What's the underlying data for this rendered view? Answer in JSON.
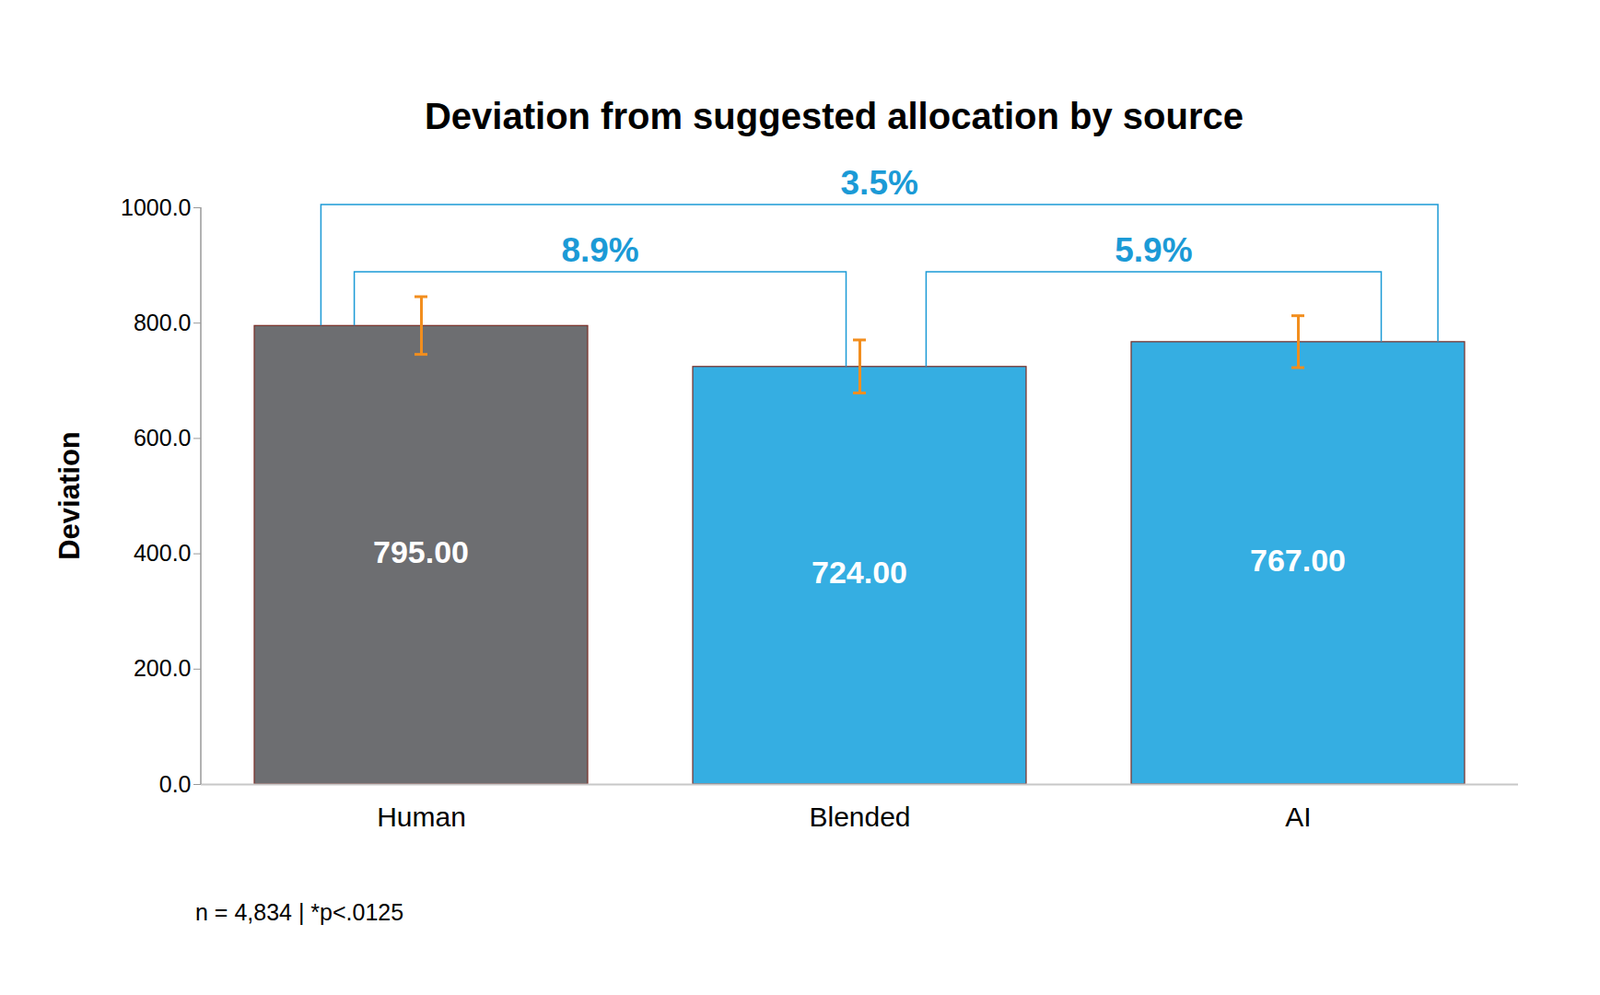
{
  "chart_data": {
    "type": "bar",
    "title": "Deviation from suggested allocation by source",
    "y_label": "Deviation",
    "categories": [
      "Human",
      "Blended",
      "AI"
    ],
    "values": [
      795,
      724,
      767
    ],
    "value_labels": [
      "795.00",
      "724.00",
      "767.00"
    ],
    "data_labels": true,
    "errors": [
      50,
      46,
      45
    ],
    "colors": [
      "#6d6e71",
      "#35aee2",
      "#35aee2"
    ],
    "ylim": [
      0,
      1000
    ],
    "yticks": [
      {
        "value": 0,
        "label": "0.0"
      },
      {
        "value": 200,
        "label": "200.0"
      },
      {
        "value": 400,
        "label": "400.0"
      },
      {
        "value": 600,
        "label": "600.0"
      },
      {
        "value": 800,
        "label": "800.0"
      },
      {
        "value": 1000,
        "label": "1000.0"
      }
    ],
    "grid": false,
    "annotations": [
      {
        "text": "3.5%",
        "from": "Human",
        "to": "AI"
      },
      {
        "text": "8.9%",
        "from": "Human",
        "to": "Blended"
      },
      {
        "text": "5.9%",
        "from": "Blended",
        "to": "AI"
      }
    ],
    "caption": "n = 4,834 | *p<.0125"
  }
}
